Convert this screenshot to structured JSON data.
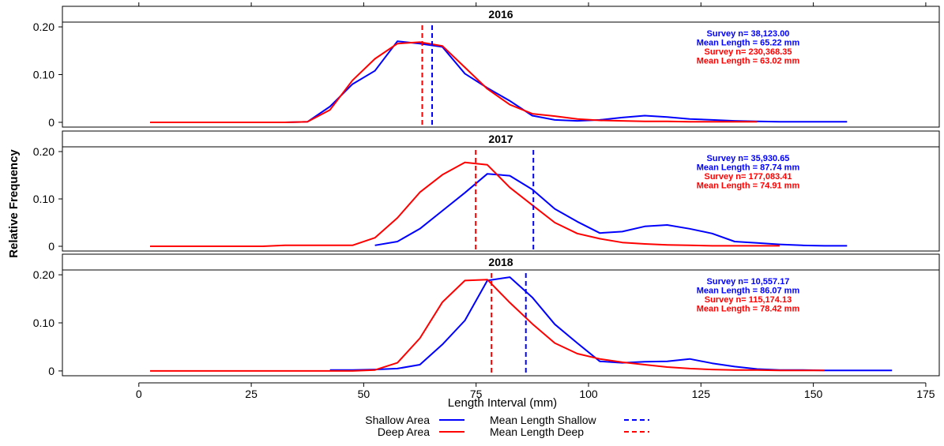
{
  "colors": {
    "shallow": "#0000ff",
    "deep": "#ff0000",
    "frame": "#000000",
    "strip_bg": "#ffffff"
  },
  "chart_data": {
    "type": "line",
    "layout": "faceted",
    "xlabel": "Length Interval (mm)",
    "ylabel": "Relative Frequency",
    "xlim": [
      -17,
      178
    ],
    "ylim": [
      -0.01,
      0.21
    ],
    "x_ticks": [
      {
        "value": 0,
        "label": "0"
      },
      {
        "value": 25,
        "label": "25"
      },
      {
        "value": 50,
        "label": "50"
      },
      {
        "value": 75,
        "label": "75"
      },
      {
        "value": 100,
        "label": "100"
      },
      {
        "value": 125,
        "label": "125"
      },
      {
        "value": 150,
        "label": "150"
      },
      {
        "value": 175,
        "label": "175"
      }
    ],
    "y_ticks": [
      {
        "value": 0,
        "label": "0"
      },
      {
        "value": 0.1,
        "label": "0.10"
      },
      {
        "value": 0.2,
        "label": "0.20"
      }
    ],
    "grid": false,
    "legend": {
      "position": "bottom",
      "items": [
        {
          "label": "Shallow Area",
          "series": "shallow",
          "style": "solid"
        },
        {
          "label": "Mean Length Shallow",
          "series": "shallow",
          "style": "dashed"
        },
        {
          "label": "Deep Area",
          "series": "deep",
          "style": "solid"
        },
        {
          "label": "Mean Length Deep",
          "series": "deep",
          "style": "dashed"
        }
      ]
    },
    "panels": [
      {
        "title": "2016",
        "annotations": [
          {
            "text": "Survey n= 38,123.00",
            "series": "shallow"
          },
          {
            "text": "Mean Length = 65.22 mm",
            "series": "shallow"
          },
          {
            "text": "Survey n= 230,368.35",
            "series": "deep"
          },
          {
            "text": "Mean Length = 63.02 mm",
            "series": "deep"
          }
        ],
        "means": {
          "shallow": 65.22,
          "deep": 63.02
        },
        "series": [
          {
            "name": "Shallow Area",
            "key": "shallow",
            "x": [
              2.5,
              7.5,
              12.5,
              17.5,
              22.5,
              27.5,
              32.5,
              37.5,
              42.5,
              47.5,
              52.5,
              57.5,
              62.5,
              67.5,
              72.5,
              77.5,
              82.5,
              87.5,
              92.5,
              97.5,
              102.5,
              107.5,
              112.5,
              117.5,
              122.5,
              127.5,
              132.5,
              137.5,
              142.5,
              147.5,
              152.5,
              157.5
            ],
            "y": [
              0,
              0,
              0,
              0,
              0,
              0,
              0,
              0.001,
              0.033,
              0.08,
              0.108,
              0.17,
              0.165,
              0.158,
              0.102,
              0.072,
              0.045,
              0.014,
              0.005,
              0.003,
              0.005,
              0.01,
              0.014,
              0.011,
              0.007,
              0.005,
              0.003,
              0.002,
              0.001,
              0.001,
              0.001,
              0.001
            ]
          },
          {
            "name": "Deep Area",
            "key": "deep",
            "x": [
              2.5,
              7.5,
              12.5,
              17.5,
              22.5,
              27.5,
              32.5,
              37.5,
              42.5,
              47.5,
              52.5,
              57.5,
              62.5,
              67.5,
              72.5,
              77.5,
              82.5,
              87.5,
              92.5,
              97.5,
              102.5,
              107.5,
              112.5,
              117.5,
              122.5,
              127.5,
              132.5,
              137.5
            ],
            "y": [
              0,
              0,
              0,
              0,
              0,
              0,
              0,
              0.001,
              0.026,
              0.088,
              0.133,
              0.165,
              0.168,
              0.16,
              0.115,
              0.07,
              0.037,
              0.018,
              0.013,
              0.007,
              0.004,
              0.003,
              0.002,
              0.002,
              0.001,
              0.001,
              0.001,
              0.001
            ]
          }
        ]
      },
      {
        "title": "2017",
        "annotations": [
          {
            "text": "Survey n= 35,930.65",
            "series": "shallow"
          },
          {
            "text": "Mean Length = 87.74 mm",
            "series": "shallow"
          },
          {
            "text": "Survey n= 177,083.41",
            "series": "deep"
          },
          {
            "text": "Mean Length = 74.91 mm",
            "series": "deep"
          }
        ],
        "means": {
          "shallow": 87.74,
          "deep": 74.91
        },
        "series": [
          {
            "name": "Shallow Area",
            "key": "shallow",
            "x": [
              52.5,
              57.5,
              62.5,
              67.5,
              72.5,
              77.5,
              82.5,
              87.5,
              92.5,
              97.5,
              102.5,
              107.5,
              112.5,
              117.5,
              122.5,
              127.5,
              132.5,
              137.5,
              142.5,
              147.5,
              152.5,
              157.5
            ],
            "y": [
              0.002,
              0.01,
              0.037,
              0.075,
              0.113,
              0.153,
              0.149,
              0.12,
              0.079,
              0.052,
              0.028,
              0.031,
              0.042,
              0.045,
              0.037,
              0.027,
              0.01,
              0.007,
              0.004,
              0.002,
              0.001,
              0.001
            ]
          },
          {
            "name": "Deep Area",
            "key": "deep",
            "x": [
              2.5,
              7.5,
              12.5,
              17.5,
              22.5,
              27.5,
              32.5,
              37.5,
              42.5,
              47.5,
              52.5,
              57.5,
              62.5,
              67.5,
              72.5,
              77.5,
              82.5,
              87.5,
              92.5,
              97.5,
              102.5,
              107.5,
              112.5,
              117.5,
              122.5,
              127.5,
              132.5,
              137.5,
              142.5
            ],
            "y": [
              0,
              0,
              0,
              0,
              0,
              0,
              0.002,
              0.002,
              0.002,
              0.002,
              0.018,
              0.06,
              0.114,
              0.151,
              0.177,
              0.172,
              0.124,
              0.087,
              0.05,
              0.027,
              0.016,
              0.008,
              0.005,
              0.003,
              0.002,
              0.001,
              0.001,
              0.001,
              0.001
            ]
          }
        ]
      },
      {
        "title": "2018",
        "annotations": [
          {
            "text": "Survey n= 10,557.17",
            "series": "shallow"
          },
          {
            "text": "Mean Length = 86.07 mm",
            "series": "shallow"
          },
          {
            "text": "Survey n= 115,174.13",
            "series": "deep"
          },
          {
            "text": "Mean Length = 78.42 mm",
            "series": "deep"
          }
        ],
        "means": {
          "shallow": 86.07,
          "deep": 78.42
        },
        "series": [
          {
            "name": "Shallow Area",
            "key": "shallow",
            "x": [
              42.5,
              47.5,
              52.5,
              57.5,
              62.5,
              67.5,
              72.5,
              77.5,
              82.5,
              87.5,
              92.5,
              97.5,
              102.5,
              107.5,
              112.5,
              117.5,
              122.5,
              127.5,
              132.5,
              137.5,
              142.5,
              147.5,
              152.5,
              157.5,
              162.5,
              167.5
            ],
            "y": [
              0.002,
              0.002,
              0.003,
              0.005,
              0.013,
              0.055,
              0.105,
              0.188,
              0.195,
              0.153,
              0.097,
              0.058,
              0.02,
              0.017,
              0.019,
              0.02,
              0.025,
              0.016,
              0.009,
              0.004,
              0.002,
              0.002,
              0.001,
              0.001,
              0.001,
              0.001
            ]
          },
          {
            "name": "Deep Area",
            "key": "deep",
            "x": [
              2.5,
              7.5,
              12.5,
              17.5,
              22.5,
              27.5,
              32.5,
              37.5,
              42.5,
              47.5,
              52.5,
              57.5,
              62.5,
              67.5,
              72.5,
              77.5,
              82.5,
              87.5,
              92.5,
              97.5,
              102.5,
              107.5,
              112.5,
              117.5,
              122.5,
              127.5,
              132.5,
              137.5,
              142.5,
              147.5,
              152.5
            ],
            "y": [
              0,
              0,
              0,
              0,
              0,
              0,
              0,
              0,
              0,
              0,
              0.002,
              0.017,
              0.068,
              0.143,
              0.188,
              0.19,
              0.142,
              0.098,
              0.058,
              0.036,
              0.025,
              0.018,
              0.013,
              0.008,
              0.005,
              0.003,
              0.002,
              0.002,
              0.001,
              0.001,
              0.001
            ]
          }
        ]
      }
    ]
  }
}
